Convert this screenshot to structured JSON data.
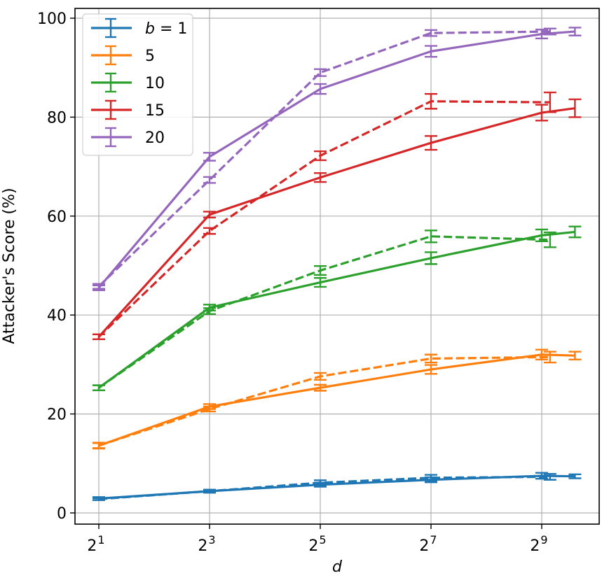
{
  "chart_data": {
    "type": "line",
    "title": "",
    "xlabel": "d",
    "ylabel": "Attacker's Score (%)",
    "xscale": "log2",
    "x_tick_labels": [
      {
        "base": "2",
        "exp": "1",
        "log2": 1
      },
      {
        "base": "2",
        "exp": "3",
        "log2": 3
      },
      {
        "base": "2",
        "exp": "5",
        "log2": 5
      },
      {
        "base": "2",
        "exp": "7",
        "log2": 7
      },
      {
        "base": "2",
        "exp": "9",
        "log2": 9
      }
    ],
    "y_ticks": [
      0,
      20,
      40,
      60,
      80,
      100
    ],
    "ylim": [
      -3,
      102
    ],
    "grid": true,
    "legend_position": "upper left",
    "legend": [
      {
        "label_prefix": "b",
        "label_suffix": " = 1",
        "color": "#1f77b4"
      },
      {
        "label_prefix": "",
        "label_suffix": "5",
        "color": "#ff7f0e"
      },
      {
        "label_prefix": "",
        "label_suffix": "10",
        "color": "#2ca02c"
      },
      {
        "label_prefix": "",
        "label_suffix": "15",
        "color": "#d62728"
      },
      {
        "label_prefix": "",
        "label_suffix": "20",
        "color": "#9467bd"
      }
    ],
    "series": [
      {
        "name": "b=1 (solid)",
        "color": "#1f77b4",
        "style": "solid",
        "x_log2": [
          1,
          3,
          5,
          7,
          9,
          9.6
        ],
        "values": [
          2.9,
          4.4,
          5.7,
          6.7,
          7.5,
          7.4
        ],
        "err": [
          0.3,
          0.3,
          0.4,
          0.5,
          0.6,
          0.4
        ]
      },
      {
        "name": "b=1 (dashed)",
        "color": "#1f77b4",
        "style": "dashed",
        "x_log2": [
          1,
          3,
          5,
          7,
          9.15
        ],
        "values": [
          2.8,
          4.4,
          6.1,
          7.1,
          7.3
        ],
        "err": [
          0.2,
          0.3,
          0.5,
          0.6,
          0.6
        ]
      },
      {
        "name": "b=5 (solid)",
        "color": "#ff7f0e",
        "style": "solid",
        "x_log2": [
          1,
          3,
          5,
          7,
          9,
          9.6
        ],
        "values": [
          13.6,
          21.5,
          25.3,
          29.0,
          32.0,
          31.8
        ],
        "err": [
          0.5,
          0.5,
          0.6,
          0.9,
          1.0,
          0.8
        ]
      },
      {
        "name": "b=5 (dashed)",
        "color": "#ff7f0e",
        "style": "dashed",
        "x_log2": [
          1,
          3,
          5,
          7,
          9.15
        ],
        "values": [
          13.6,
          21.0,
          27.6,
          31.2,
          31.5
        ],
        "err": [
          0.6,
          0.5,
          0.7,
          0.8,
          1.1
        ]
      },
      {
        "name": "b=10 (solid)",
        "color": "#2ca02c",
        "style": "solid",
        "x_log2": [
          1,
          3,
          5,
          7,
          9,
          9.6
        ],
        "values": [
          25.3,
          41.5,
          46.6,
          51.5,
          56.1,
          56.8
        ],
        "err": [
          0.5,
          0.6,
          0.9,
          1.2,
          1.2,
          1.1
        ]
      },
      {
        "name": "b=10 (dashed)",
        "color": "#2ca02c",
        "style": "dashed",
        "x_log2": [
          1,
          3,
          5,
          7,
          9.15
        ],
        "values": [
          25.3,
          40.8,
          49.0,
          55.9,
          55.2
        ],
        "err": [
          0.5,
          0.6,
          0.9,
          1.2,
          1.5
        ]
      },
      {
        "name": "b=15 (solid)",
        "color": "#d62728",
        "style": "solid",
        "x_log2": [
          1,
          3,
          5,
          7,
          9,
          9.6
        ],
        "values": [
          35.6,
          60.3,
          67.8,
          74.8,
          80.9,
          81.8
        ],
        "err": [
          0.5,
          0.6,
          0.9,
          1.4,
          1.6,
          1.8
        ]
      },
      {
        "name": "b=15 (dashed)",
        "color": "#d62728",
        "style": "dashed",
        "x_log2": [
          1,
          3,
          5,
          7,
          9.15
        ],
        "values": [
          35.6,
          57.0,
          72.2,
          83.2,
          83.0
        ],
        "err": [
          0.5,
          0.6,
          0.9,
          1.5,
          2.0
        ]
      },
      {
        "name": "b=20 (solid)",
        "color": "#9467bd",
        "style": "solid",
        "x_log2": [
          1,
          3,
          5,
          7,
          9,
          9.6
        ],
        "values": [
          45.5,
          72.0,
          85.7,
          93.3,
          96.8,
          97.3
        ],
        "err": [
          0.5,
          0.8,
          1.0,
          1.1,
          0.9,
          0.8
        ]
      },
      {
        "name": "b=20 (dashed)",
        "color": "#9467bd",
        "style": "dashed",
        "x_log2": [
          1,
          3,
          5,
          7,
          9.15
        ],
        "values": [
          45.8,
          67.3,
          89.0,
          97.0,
          97.3
        ],
        "err": [
          0.5,
          0.6,
          0.7,
          0.6,
          0.6
        ]
      }
    ]
  }
}
